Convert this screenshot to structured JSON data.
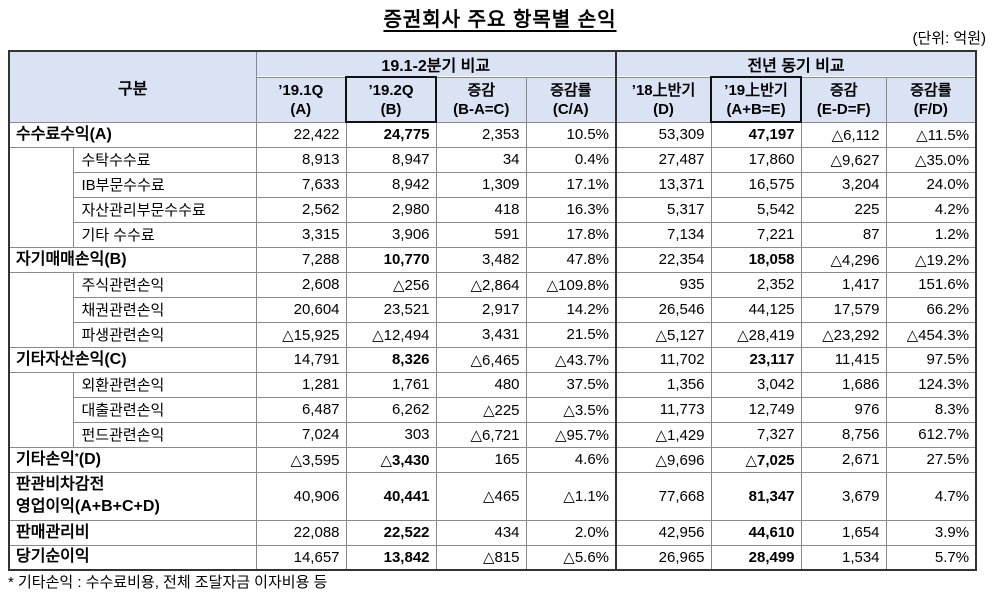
{
  "title": "증권회사 주요 항목별 손익",
  "unit": "(단위: 억원)",
  "header": {
    "category": "구분",
    "group1": "19.1-2분기 비교",
    "group2": "전년 동기 비교",
    "columns": [
      {
        "line1": "’19.1Q",
        "line2": "(A)"
      },
      {
        "line1": "’19.2Q",
        "line2": "(B)"
      },
      {
        "line1": "증감",
        "line2": "(B-A=C)"
      },
      {
        "line1": "증감률",
        "line2": "(C/A)"
      },
      {
        "line1": "’18上반기",
        "line2": "(D)"
      },
      {
        "line1": "’19上반기",
        "line2": "(A+B=E)"
      },
      {
        "line1": "증감",
        "line2": "(E-D=F)"
      },
      {
        "line1": "증감률",
        "line2": "(F/D)"
      }
    ]
  },
  "sections": [
    {
      "label": "수수료수익(A)",
      "values": [
        "22,422",
        "24,775",
        "2,353",
        "10.5%",
        "53,309",
        "47,197",
        "△6,112",
        "△11.5%"
      ],
      "items": [
        {
          "label": "수탁수수료",
          "values": [
            "8,913",
            "8,947",
            "34",
            "0.4%",
            "27,487",
            "17,860",
            "△9,627",
            "△35.0%"
          ]
        },
        {
          "label": "IB부문수수료",
          "values": [
            "7,633",
            "8,942",
            "1,309",
            "17.1%",
            "13,371",
            "16,575",
            "3,204",
            "24.0%"
          ]
        },
        {
          "label": "자산관리부문수수료",
          "values": [
            "2,562",
            "2,980",
            "418",
            "16.3%",
            "5,317",
            "5,542",
            "225",
            "4.2%"
          ]
        },
        {
          "label": "기타 수수료",
          "values": [
            "3,315",
            "3,906",
            "591",
            "17.8%",
            "7,134",
            "7,221",
            "87",
            "1.2%"
          ]
        }
      ]
    },
    {
      "label": "자기매매손익(B)",
      "values": [
        "7,288",
        "10,770",
        "3,482",
        "47.8%",
        "22,354",
        "18,058",
        "△4,296",
        "△19.2%"
      ],
      "items": [
        {
          "label": "주식관련손익",
          "values": [
            "2,608",
            "△256",
            "△2,864",
            "△109.8%",
            "935",
            "2,352",
            "1,417",
            "151.6%"
          ]
        },
        {
          "label": "채권관련손익",
          "values": [
            "20,604",
            "23,521",
            "2,917",
            "14.2%",
            "26,546",
            "44,125",
            "17,579",
            "66.2%"
          ]
        },
        {
          "label": "파생관련손익",
          "values": [
            "△15,925",
            "△12,494",
            "3,431",
            "21.5%",
            "△5,127",
            "△28,419",
            "△23,292",
            "△454.3%"
          ]
        }
      ]
    },
    {
      "label": "기타자산손익(C)",
      "values": [
        "14,791",
        "8,326",
        "△6,465",
        "△43.7%",
        "11,702",
        "23,117",
        "11,415",
        "97.5%"
      ],
      "items": [
        {
          "label": "외환관련손익",
          "values": [
            "1,281",
            "1,761",
            "480",
            "37.5%",
            "1,356",
            "3,042",
            "1,686",
            "124.3%"
          ]
        },
        {
          "label": "대출관련손익",
          "values": [
            "6,487",
            "6,262",
            "△225",
            "△3.5%",
            "11,773",
            "12,749",
            "976",
            "8.3%"
          ]
        },
        {
          "label": "펀드관련손익",
          "values": [
            "7,024",
            "303",
            "△6,721",
            "△95.7%",
            "△1,429",
            "7,327",
            "8,756",
            "612.7%"
          ]
        }
      ]
    },
    {
      "label": "기타손익",
      "mark": "*",
      "label_suffix": "(D)",
      "values": [
        "△3,595",
        "△3,430",
        "165",
        "4.6%",
        "△9,696",
        "△7,025",
        "2,671",
        "27.5%"
      ]
    },
    {
      "label": "판관비차감전",
      "label_line2": "영업이익(A+B+C+D)",
      "values": [
        "40,906",
        "40,441",
        "△465",
        "△1.1%",
        "77,668",
        "81,347",
        "3,679",
        "4.7%"
      ]
    },
    {
      "label": "판매관리비",
      "values": [
        "22,088",
        "22,522",
        "434",
        "2.0%",
        "42,956",
        "44,610",
        "1,654",
        "3.9%"
      ]
    },
    {
      "label": "당기순이익",
      "values": [
        "14,657",
        "13,842",
        "△815",
        "△5.6%",
        "26,965",
        "28,499",
        "1,534",
        "5.7%"
      ]
    }
  ],
  "footnote": "* 기타손익 : 수수료비용, 전체 조달자금 이자비용 등"
}
